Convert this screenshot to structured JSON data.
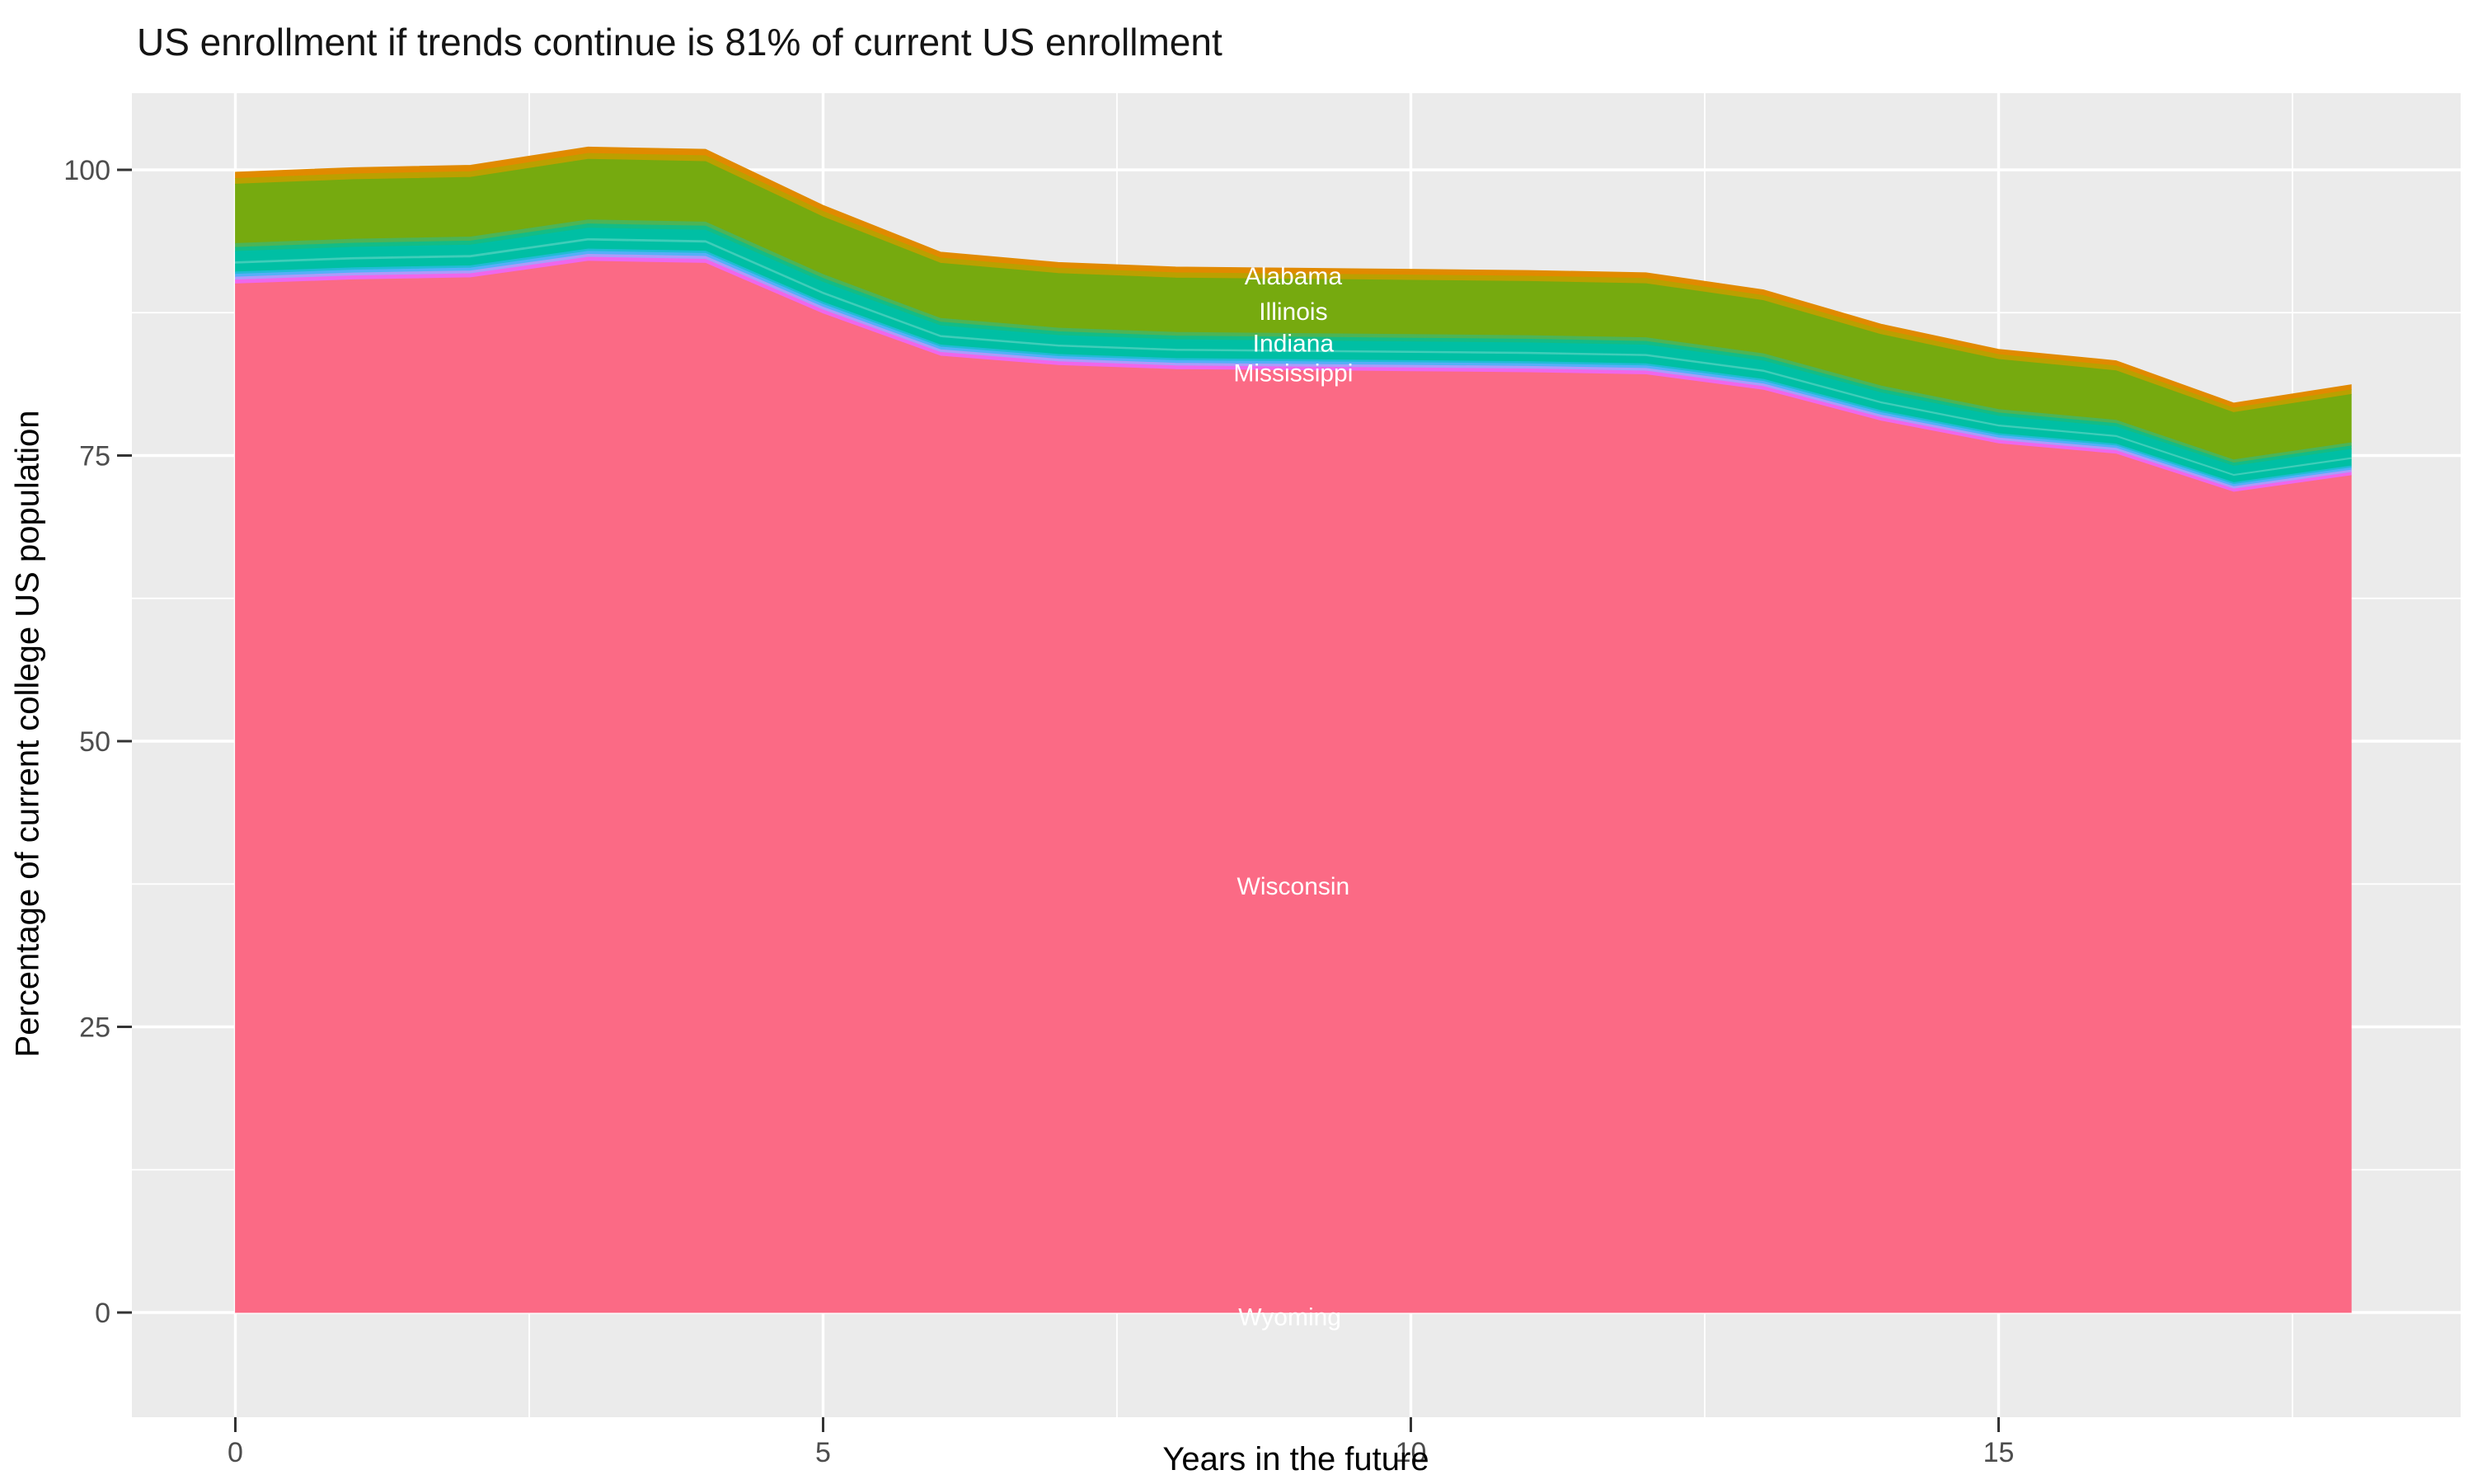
{
  "title": "US enrollment if trends continue is 81% of current US enrollment",
  "x_axis": {
    "label": "Years in the future",
    "ticks": [
      {
        "value": 0,
        "label": "0"
      },
      {
        "value": 5,
        "label": "5"
      },
      {
        "value": 10,
        "label": "10"
      },
      {
        "value": 15,
        "label": "15"
      }
    ],
    "minor_ticks": [
      2.5,
      7.5,
      12.5,
      17.5
    ]
  },
  "y_axis": {
    "label": "Percentage of current college US population",
    "ticks": [
      {
        "value": 0,
        "label": "0"
      },
      {
        "value": 25,
        "label": "25"
      },
      {
        "value": 50,
        "label": "50"
      },
      {
        "value": 75,
        "label": "75"
      },
      {
        "value": 100,
        "label": "100"
      }
    ],
    "minor_ticks": [
      12.5,
      37.5,
      62.5,
      87.5
    ]
  },
  "chart_data": {
    "type": "area",
    "description": "Stacked area of US states (alphabetical top to bottom), total percentage of current US college enrollment projected into the future",
    "x_years": [
      0,
      1,
      2,
      3,
      4,
      5,
      6,
      7,
      8,
      9,
      10,
      11,
      12,
      13,
      14,
      15,
      16,
      17,
      18
    ],
    "total_pct": [
      99.8,
      100.2,
      100.4,
      102.0,
      101.8,
      96.9,
      92.8,
      91.9,
      91.5,
      91.4,
      91.3,
      91.2,
      91.0,
      89.5,
      86.5,
      84.3,
      83.3,
      79.6,
      81.2
    ],
    "x_range": [
      0,
      18
    ],
    "y_range_shown": [
      0,
      102
    ],
    "final_value_pct": 81,
    "bands": [
      {
        "name": "orange-top-band",
        "color": "#E18A00",
        "top": 1.0,
        "bottom": 0.9945
      },
      {
        "name": "olive-transition",
        "color": "#BBA000",
        "top": 0.9945,
        "bottom": 0.9895
      },
      {
        "name": "green-band",
        "color": "#76AA0F",
        "top": 0.9895,
        "bottom": 0.9375
      },
      {
        "name": "green-teal-transition-1",
        "color": "#4DB456",
        "top": 0.9375,
        "bottom": 0.934
      },
      {
        "name": "green-teal-transition-2",
        "color": "#14BC85",
        "top": 0.934,
        "bottom": 0.9305
      },
      {
        "name": "teal-band",
        "color": "#00BFA4",
        "top": 0.9305,
        "bottom": 0.9215
      },
      {
        "name": "teal-hairline",
        "color": "#3FCDB9",
        "top": 0.9215,
        "bottom": 0.9195
      },
      {
        "name": "teal-band-lower",
        "color": "#00BFA4",
        "top": 0.9195,
        "bottom": 0.9125
      },
      {
        "name": "cyan-sliver",
        "color": "#21BBD6",
        "top": 0.9125,
        "bottom": 0.9105
      },
      {
        "name": "blue-sliver",
        "color": "#55AFF8",
        "top": 0.9105,
        "bottom": 0.908
      },
      {
        "name": "lavender-sliver",
        "color": "#AD9BFA",
        "top": 0.908,
        "bottom": 0.9055
      },
      {
        "name": "magenta-sliver",
        "color": "#EF67EC",
        "top": 0.9055,
        "bottom": 0.902
      },
      {
        "name": "pink-band",
        "color": "#FB6A85",
        "top": 0.902,
        "bottom": 0.0
      }
    ],
    "state_labels": [
      {
        "name": "Alabama",
        "year": 9,
        "pct": 90.7
      },
      {
        "name": "Illinois",
        "year": 9,
        "pct": 87.6
      },
      {
        "name": "Indiana",
        "year": 9,
        "pct": 84.8
      },
      {
        "name": "Mississippi",
        "year": 9,
        "pct": 82.2
      },
      {
        "name": "Wisconsin",
        "year": 9,
        "pct": 37.3
      },
      {
        "name": "Wyoming",
        "year": 8.97,
        "pct": -0.4
      }
    ],
    "style": {
      "panel_bg": "#EBEBEB",
      "grid_color": "#FFFFFF",
      "tick_mark_color": "#333333",
      "tick_text_color": "#4D4D4D",
      "axis_title_color": "#000000",
      "state_label_color": "#FFFFFF"
    }
  }
}
